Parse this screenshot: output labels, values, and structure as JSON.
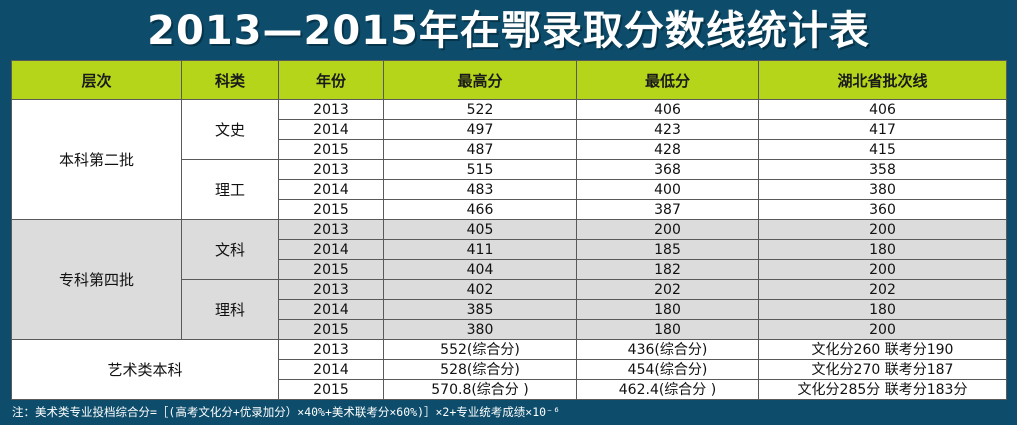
{
  "title": "2013—2015年在鄂录取分数线统计表",
  "headers": [
    "层次",
    "科类",
    "年份",
    "最高分",
    "最低分",
    "湖北省批次线"
  ],
  "groups": [
    {
      "level": "本科第二批",
      "tracks": [
        {
          "track": "文史",
          "rows": [
            {
              "year": "2013",
              "max": "522",
              "min": "406",
              "line": "406"
            },
            {
              "year": "2014",
              "max": "497",
              "min": "423",
              "line": "417"
            },
            {
              "year": "2015",
              "max": "487",
              "min": "428",
              "line": "415"
            }
          ]
        },
        {
          "track": "理工",
          "rows": [
            {
              "year": "2013",
              "max": "515",
              "min": "368",
              "line": "358"
            },
            {
              "year": "2014",
              "max": "483",
              "min": "400",
              "line": "380"
            },
            {
              "year": "2015",
              "max": "466",
              "min": "387",
              "line": "360"
            }
          ]
        }
      ]
    },
    {
      "level": "专科第四批",
      "tracks": [
        {
          "track": "文科",
          "rows": [
            {
              "year": "2013",
              "max": "405",
              "min": "200",
              "line": "200"
            },
            {
              "year": "2014",
              "max": "411",
              "min": "185",
              "line": "180"
            },
            {
              "year": "2015",
              "max": "404",
              "min": "182",
              "line": "200"
            }
          ]
        },
        {
          "track": "理科",
          "rows": [
            {
              "year": "2013",
              "max": "402",
              "min": "202",
              "line": "202"
            },
            {
              "year": "2014",
              "max": "385",
              "min": "180",
              "line": "180"
            },
            {
              "year": "2015",
              "max": "380",
              "min": "180",
              "line": "200"
            }
          ]
        }
      ]
    }
  ],
  "art": {
    "level": "艺术类本科",
    "rows": [
      {
        "year": "2013",
        "max": "552(综合分)",
        "min": "436(综合分)",
        "line": "文化分260  联考分190"
      },
      {
        "year": "2014",
        "max": "528(综合分)",
        "min": "454(综合分)",
        "line": "文化分270  联考分187"
      },
      {
        "year": "2015",
        "max": "570.8(综合分 )",
        "min": "462.4(综合分 )",
        "line": "文化分285分  联考分183分"
      }
    ]
  },
  "note": "注：美术类专业投档综合分=［(高考文化分+优录加分）×40%+美术联考分×60%)］×2+专业统考成绩×10⁻⁶"
}
